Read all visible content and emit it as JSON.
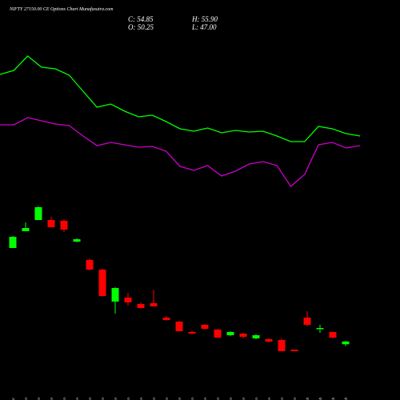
{
  "chart_data": {
    "type": "candlestick",
    "title": "NIFTY 27150.00 CE Options Chart Munafasutra.com",
    "readout": [
      "C: 54.85",
      "H: 55.90",
      "O: 50.25",
      "L: 47.00"
    ],
    "categories": [
      "31 Dec",
      "01 Jan",
      "02 Jan",
      "03 Jan",
      "06 Jan",
      "07 Jan",
      "08 Jan",
      "09 Jan",
      "10 Jan",
      "13 Jan",
      "14 Jan",
      "15 Jan",
      "16 Jan",
      "17 Jan",
      "20 Jan",
      "21 Jan",
      "22 Jan",
      "23 Jan",
      "24 Jan",
      "27 Jan",
      "28 Jan",
      "29 Jan",
      "30 Jan",
      "03 Feb",
      "04 Feb",
      "05 Feb",
      "06 Feb"
    ],
    "open": [
      210.7,
      238.7,
      257.3,
      257.3,
      256,
      221.3,
      190.7,
      174.7,
      121.3,
      128,
      117.3,
      118.7,
      94.7,
      88,
      70.7,
      82.7,
      74.7,
      65.3,
      68,
      60,
      58.7,
      57.3,
      41.3,
      94.7,
      76,
      70.7,
      50.25
    ],
    "high": [
      230.7,
      253.3,
      280,
      262.7,
      258.7,
      226.7,
      193.3,
      176,
      145.3,
      136,
      120,
      141.3,
      97.3,
      89.3,
      73.3,
      84,
      76,
      72,
      69.3,
      66.7,
      60,
      60,
      41.3,
      105.3,
      82.7,
      70.7,
      55.9
    ],
    "low": [
      210.7,
      238.7,
      257.3,
      245.3,
      237.3,
      220,
      173.3,
      129.3,
      101.3,
      114.7,
      109.3,
      113.3,
      89.3,
      72,
      66.7,
      74.7,
      61.3,
      64,
      60,
      58.7,
      53.3,
      38.7,
      38.7,
      80,
      69.3,
      60,
      47
    ],
    "close": [
      229.3,
      244,
      278.7,
      245.3,
      241.3,
      225.3,
      174.7,
      130.7,
      144,
      120,
      110.7,
      113.3,
      90.7,
      72,
      68,
      76,
      61.3,
      70.7,
      62.7,
      65.3,
      54.7,
      38.7,
      38.7,
      82.7,
      77.3,
      61.3,
      54.85
    ],
    "up_color": "#00ff00",
    "down_color": "#ff0000",
    "lines": [
      {
        "color": "#00ff00",
        "values": [
          500,
          506.7,
          530.7,
          512,
          509.3,
          498.7,
          472,
          445.3,
          450.7,
          438.7,
          429.3,
          432,
          421.3,
          409.3,
          405.3,
          410.7,
          402.7,
          406.7,
          404,
          405.3,
          397.3,
          388,
          388,
          413.3,
          409.3,
          401.3,
          397.3
        ]
      },
      {
        "color": "#cc00cc",
        "values": [
          416,
          416,
          428,
          422.7,
          417.3,
          414.7,
          397.3,
          381.3,
          386.7,
          382.7,
          378.7,
          380,
          372,
          346.7,
          340,
          348,
          330.7,
          338.7,
          350.7,
          354.7,
          348,
          313.3,
          333.3,
          382.7,
          386.7,
          377.3,
          381.3
        ]
      }
    ],
    "ylim": [
      0,
      624
    ]
  }
}
